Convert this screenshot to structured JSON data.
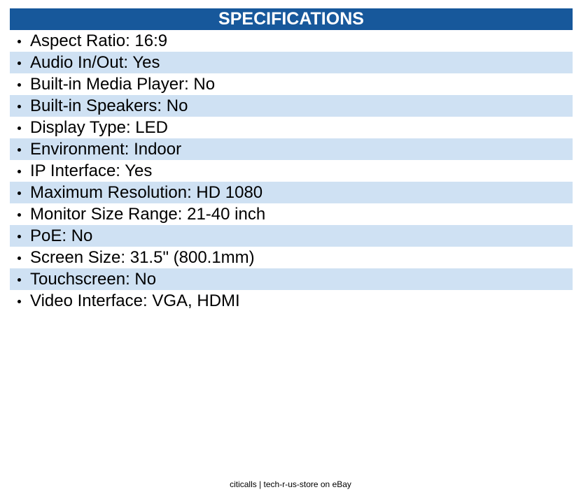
{
  "header": {
    "title": "SPECIFICATIONS"
  },
  "items": [
    "Aspect Ratio: 16:9",
    "Audio In/Out: Yes",
    "Built-in Media Player: No",
    "Built-in Speakers: No",
    "Display Type: LED",
    "Environment: Indoor",
    "IP Interface: Yes",
    "Maximum Resolution: HD 1080",
    "Monitor Size Range: 21-40 inch",
    "PoE: No",
    "Screen Size: 31.5\" (800.1mm)",
    "Touchscreen: No",
    "Video Interface: VGA, HDMI"
  ],
  "footer": "citicalls | tech-r-us-store on eBay"
}
